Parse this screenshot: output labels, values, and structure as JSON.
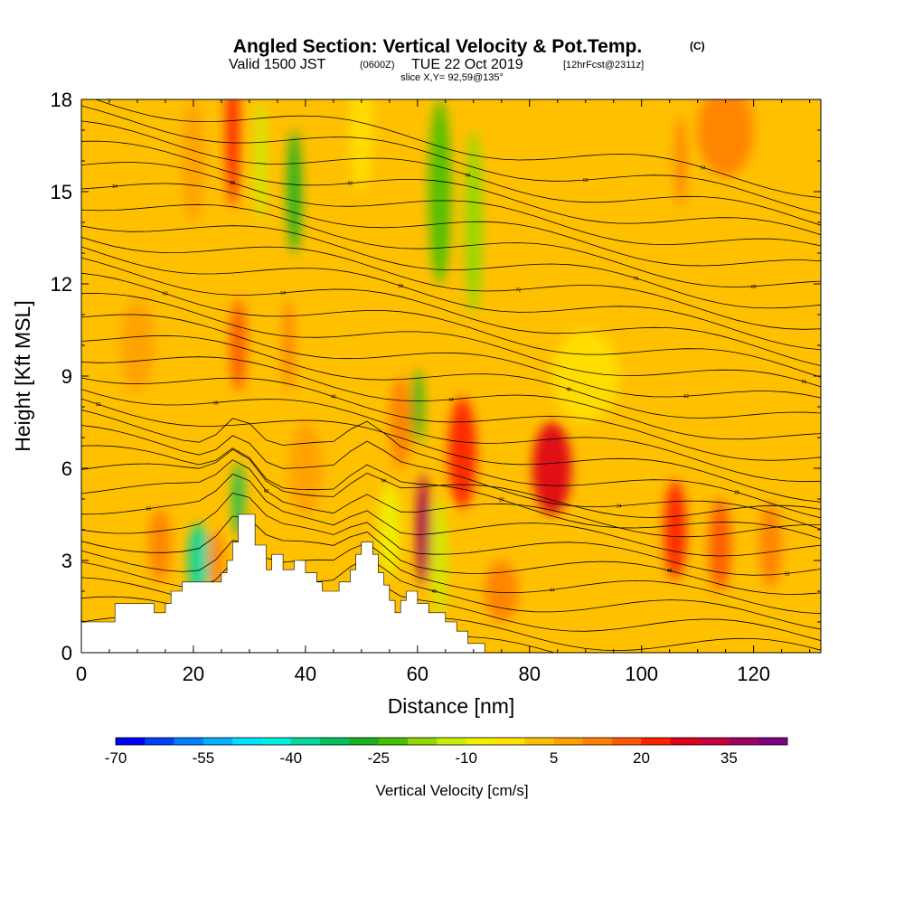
{
  "title": {
    "main": "Angled Section: Vertical Velocity & Pot.Temp.",
    "copyright": "(C)",
    "valid_prefix": "Valid 1500 JST",
    "valid_utc": "(0600Z)",
    "valid_date": "TUE 22 Oct 2019",
    "forecast": "[12hrFcst@2311z]",
    "slice": "slice X,Y= 92,59@135°"
  },
  "chart_data": {
    "type": "heatmap",
    "xlabel": "Distance [nm]",
    "ylabel": "Height [Kft MSL]",
    "xlim": [
      0,
      132
    ],
    "ylim": [
      0,
      18
    ],
    "x_ticks": [
      0,
      20,
      40,
      60,
      80,
      100,
      120
    ],
    "y_ticks": [
      0,
      3,
      6,
      9,
      12,
      15,
      18
    ],
    "x_tick_labels": [
      "0",
      "20",
      "40",
      "60",
      "80",
      "100",
      "120"
    ],
    "y_tick_labels": [
      "0",
      "3",
      "6",
      "9",
      "12",
      "15",
      "18"
    ],
    "colorbar": {
      "title": "Vertical Velocity [cm/s]",
      "min": -70,
      "max": 40,
      "step": 5,
      "tick_values": [
        -70,
        -55,
        -40,
        -25,
        -10,
        5,
        20,
        35
      ],
      "tick_labels": [
        "-70",
        "-55",
        "-40",
        "-25",
        "-10",
        "5",
        "20",
        "35"
      ],
      "colors": [
        "#0000ff",
        "#0040ff",
        "#0080ff",
        "#00b0ff",
        "#00e0ff",
        "#00f0e0",
        "#00d8a0",
        "#00c060",
        "#18b020",
        "#48c000",
        "#90d800",
        "#c8f000",
        "#f0f000",
        "#ffe000",
        "#ffc000",
        "#ffa000",
        "#ff8000",
        "#ff5800",
        "#ff2000",
        "#e00018",
        "#c80040",
        "#a00060",
        "#800080"
      ]
    },
    "background_value": 0,
    "cells": [
      {
        "x": 27,
        "y": 17,
        "rx": 1.2,
        "ry": 2.5,
        "value": 22
      },
      {
        "x": 28,
        "y": 10,
        "rx": 1.5,
        "ry": 1.5,
        "value": 15
      },
      {
        "x": 38,
        "y": 15,
        "rx": 1.3,
        "ry": 2.0,
        "value": -28
      },
      {
        "x": 32,
        "y": 16,
        "rx": 1.0,
        "ry": 2.0,
        "value": -12
      },
      {
        "x": 64,
        "y": 15,
        "rx": 2.0,
        "ry": 3.0,
        "value": -22
      },
      {
        "x": 70,
        "y": 14,
        "rx": 1.6,
        "ry": 3.0,
        "value": -18
      },
      {
        "x": 60,
        "y": 8,
        "rx": 1.0,
        "ry": 1.2,
        "value": -28
      },
      {
        "x": 57,
        "y": 7.5,
        "rx": 2.0,
        "ry": 1.5,
        "value": 12
      },
      {
        "x": 68,
        "y": 6.5,
        "rx": 2.5,
        "ry": 1.8,
        "value": 22
      },
      {
        "x": 61,
        "y": 4,
        "rx": 1.2,
        "ry": 1.8,
        "value": 38
      },
      {
        "x": 64,
        "y": 3,
        "rx": 1.2,
        "ry": 2.0,
        "value": -15
      },
      {
        "x": 84,
        "y": 6,
        "rx": 3.5,
        "ry": 1.5,
        "value": 25
      },
      {
        "x": 106,
        "y": 4,
        "rx": 2.0,
        "ry": 1.6,
        "value": 22
      },
      {
        "x": 114,
        "y": 3.5,
        "rx": 2.0,
        "ry": 1.5,
        "value": 18
      },
      {
        "x": 123,
        "y": 3.5,
        "rx": 2.0,
        "ry": 1.4,
        "value": 14
      },
      {
        "x": 21,
        "y": 3,
        "rx": 2.0,
        "ry": 1.2,
        "value": -38
      },
      {
        "x": 28,
        "y": 5,
        "rx": 1.0,
        "ry": 1.2,
        "value": -35
      },
      {
        "x": 24,
        "y": 3,
        "rx": 1.3,
        "ry": 1.0,
        "value": 12
      },
      {
        "x": 14,
        "y": 3.5,
        "rx": 2.0,
        "ry": 1.2,
        "value": 12
      },
      {
        "x": 37,
        "y": 10,
        "rx": 1.0,
        "ry": 1.5,
        "value": 10
      },
      {
        "x": 107,
        "y": 16,
        "rx": 1.0,
        "ry": 1.5,
        "value": 12
      },
      {
        "x": 115,
        "y": 17,
        "rx": 5.0,
        "ry": 1.5,
        "value": 10
      },
      {
        "x": 50,
        "y": 17,
        "rx": 2.0,
        "ry": 2.0,
        "value": -5
      },
      {
        "x": 90,
        "y": 9,
        "rx": 6.0,
        "ry": 1.5,
        "value": -5
      },
      {
        "x": 55,
        "y": 4,
        "rx": 2.0,
        "ry": 1.5,
        "value": -8
      },
      {
        "x": 40,
        "y": 6,
        "rx": 3.0,
        "ry": 1.5,
        "value": 8
      },
      {
        "x": 75,
        "y": 2,
        "rx": 3.0,
        "ry": 1.0,
        "value": 10
      },
      {
        "x": 10,
        "y": 10,
        "rx": 3.0,
        "ry": 1.5,
        "value": 8
      },
      {
        "x": 20,
        "y": 16,
        "rx": 2.0,
        "ry": 2.0,
        "value": 6
      }
    ],
    "terrain": [
      [
        0,
        1.0
      ],
      [
        6,
        1.0
      ],
      [
        6,
        1.6
      ],
      [
        13,
        1.6
      ],
      [
        13,
        1.3
      ],
      [
        15,
        1.3
      ],
      [
        15,
        1.6
      ],
      [
        16,
        1.6
      ],
      [
        16,
        2.0
      ],
      [
        18,
        2.0
      ],
      [
        18,
        2.3
      ],
      [
        25,
        2.3
      ],
      [
        25,
        2.6
      ],
      [
        26,
        2.6
      ],
      [
        26,
        3.0
      ],
      [
        27,
        3.0
      ],
      [
        27,
        3.6
      ],
      [
        28,
        3.6
      ],
      [
        28,
        4.5
      ],
      [
        31,
        4.5
      ],
      [
        31,
        3.5
      ],
      [
        33,
        3.5
      ],
      [
        33,
        2.7
      ],
      [
        34,
        2.7
      ],
      [
        34,
        3.2
      ],
      [
        36,
        3.2
      ],
      [
        36,
        2.7
      ],
      [
        38,
        2.7
      ],
      [
        38,
        3.0
      ],
      [
        40,
        3.0
      ],
      [
        40,
        2.6
      ],
      [
        42,
        2.6
      ],
      [
        42,
        2.3
      ],
      [
        43,
        2.3
      ],
      [
        43,
        2.0
      ],
      [
        45,
        2.0
      ],
      [
        45,
        2.0
      ],
      [
        46,
        2.0
      ],
      [
        46,
        2.3
      ],
      [
        48,
        2.3
      ],
      [
        48,
        2.7
      ],
      [
        49,
        2.7
      ],
      [
        49,
        3.2
      ],
      [
        50,
        3.2
      ],
      [
        50,
        3.6
      ],
      [
        52,
        3.6
      ],
      [
        52,
        3.2
      ],
      [
        53,
        3.2
      ],
      [
        53,
        2.6
      ],
      [
        54,
        2.6
      ],
      [
        54,
        2.2
      ],
      [
        55,
        2.2
      ],
      [
        55,
        1.7
      ],
      [
        56,
        1.7
      ],
      [
        56,
        1.3
      ],
      [
        57,
        1.3
      ],
      [
        57,
        1.7
      ],
      [
        58,
        1.7
      ],
      [
        58,
        2.0
      ],
      [
        60,
        2.0
      ],
      [
        60,
        1.6
      ],
      [
        62,
        1.6
      ],
      [
        62,
        1.3
      ],
      [
        65,
        1.3
      ],
      [
        65,
        1.0
      ],
      [
        67,
        1.0
      ],
      [
        67,
        0.7
      ],
      [
        69,
        0.7
      ],
      [
        69,
        0.3
      ],
      [
        72,
        0.3
      ],
      [
        72,
        0.0
      ],
      [
        132,
        0.0
      ]
    ],
    "theta_contours": {
      "count": 32,
      "label_values": [
        "28",
        "32",
        "36",
        "40",
        "44",
        "48",
        "52",
        "56",
        "60",
        "64",
        "20",
        "24",
        "28",
        "32",
        "36",
        "40",
        "44",
        "48",
        "52",
        "56",
        "60",
        "64",
        "68",
        "72",
        "76",
        "80",
        "84",
        "88",
        "92",
        "96",
        "50",
        "54"
      ]
    }
  }
}
